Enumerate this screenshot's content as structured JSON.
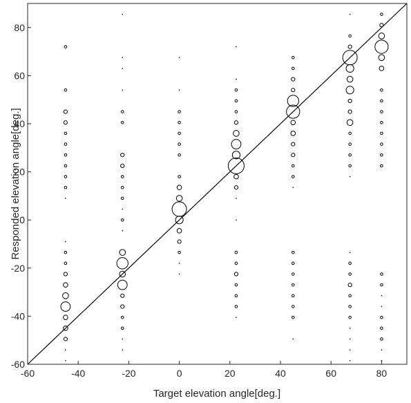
{
  "chart_data": {
    "type": "scatter",
    "subtype": "bubble",
    "xlabel": "Target elevation angle[deg.]",
    "ylabel": "Responded elevation angle[deg.]",
    "xlim": [
      -60,
      90
    ],
    "ylim": [
      -60,
      90
    ],
    "xticks": [
      -60,
      -40,
      -20,
      0,
      20,
      40,
      60,
      80
    ],
    "yticks": [
      -60,
      -40,
      -20,
      0,
      20,
      40,
      60,
      80
    ],
    "grid": false,
    "marker": "open-circle",
    "marker_color": "#000000",
    "reference_line": {
      "from": [
        -60,
        -60
      ],
      "to": [
        90,
        90
      ],
      "color": "#000000"
    },
    "size_unit": "relative frequency of responses (1-10)",
    "series": [
      {
        "x": -45,
        "points": [
          [
            72,
            1
          ],
          [
            54,
            1
          ],
          [
            45,
            2
          ],
          [
            40.5,
            2
          ],
          [
            36,
            1
          ],
          [
            31.5,
            1
          ],
          [
            27,
            1
          ],
          [
            22.5,
            1
          ],
          [
            18,
            1
          ],
          [
            13.5,
            1
          ],
          [
            9,
            0
          ],
          [
            -9,
            0
          ],
          [
            -13.5,
            1
          ],
          [
            -18,
            1
          ],
          [
            -22.5,
            2
          ],
          [
            -27,
            3
          ],
          [
            -31.5,
            4
          ],
          [
            -36,
            6
          ],
          [
            -40.5,
            3
          ],
          [
            -45,
            3
          ],
          [
            -49.5,
            2
          ],
          [
            -54,
            0
          ],
          [
            -58.5,
            0
          ]
        ]
      },
      {
        "x": -22.5,
        "points": [
          [
            85.5,
            0
          ],
          [
            67.5,
            0
          ],
          [
            63,
            0
          ],
          [
            54,
            0
          ],
          [
            45,
            1
          ],
          [
            40.5,
            1
          ],
          [
            27,
            2
          ],
          [
            22.5,
            2
          ],
          [
            18,
            1
          ],
          [
            13.5,
            1
          ],
          [
            9,
            1
          ],
          [
            4.5,
            0
          ],
          [
            0,
            1
          ],
          [
            -4.5,
            0
          ],
          [
            -13.5,
            4
          ],
          [
            -18,
            7
          ],
          [
            -22.5,
            4
          ],
          [
            -27,
            6
          ],
          [
            -31.5,
            2
          ],
          [
            -36,
            2
          ],
          [
            -40.5,
            1
          ],
          [
            -45,
            1
          ],
          [
            -49.5,
            0
          ],
          [
            -54,
            0
          ]
        ]
      },
      {
        "x": 0,
        "points": [
          [
            67.5,
            0
          ],
          [
            54,
            0
          ],
          [
            45,
            1
          ],
          [
            40.5,
            1
          ],
          [
            36,
            1
          ],
          [
            31.5,
            1
          ],
          [
            27,
            1
          ],
          [
            18,
            1
          ],
          [
            13.5,
            3
          ],
          [
            9,
            4
          ],
          [
            4.5,
            9
          ],
          [
            0,
            5
          ],
          [
            -4.5,
            3
          ],
          [
            -9,
            2
          ],
          [
            -13.5,
            1
          ],
          [
            -18,
            0
          ],
          [
            -22.5,
            0
          ]
        ]
      },
      {
        "x": 22.5,
        "points": [
          [
            72,
            0
          ],
          [
            58.5,
            0
          ],
          [
            54,
            1
          ],
          [
            49.5,
            1
          ],
          [
            45,
            1
          ],
          [
            40.5,
            2
          ],
          [
            36,
            4
          ],
          [
            31.5,
            6
          ],
          [
            27,
            5
          ],
          [
            22.5,
            10
          ],
          [
            18,
            3
          ],
          [
            13.5,
            2
          ],
          [
            9,
            0
          ],
          [
            0,
            0
          ],
          [
            -13.5,
            1
          ],
          [
            -18,
            1
          ],
          [
            -22.5,
            2
          ],
          [
            -27,
            1
          ],
          [
            -31.5,
            1
          ],
          [
            -36,
            1
          ],
          [
            -40.5,
            0
          ]
        ]
      },
      {
        "x": 45,
        "points": [
          [
            67.5,
            1
          ],
          [
            63,
            1
          ],
          [
            58.5,
            2
          ],
          [
            54,
            2
          ],
          [
            49.5,
            7
          ],
          [
            45,
            8
          ],
          [
            40.5,
            3
          ],
          [
            36,
            3
          ],
          [
            31.5,
            2
          ],
          [
            27,
            2
          ],
          [
            22.5,
            1
          ],
          [
            18,
            1
          ],
          [
            13.5,
            0
          ],
          [
            -13.5,
            1
          ],
          [
            -18,
            1
          ],
          [
            -22.5,
            1
          ],
          [
            -27,
            1
          ],
          [
            -31.5,
            1
          ],
          [
            -36,
            1
          ],
          [
            -40.5,
            1
          ],
          [
            -49.5,
            0
          ]
        ]
      },
      {
        "x": 67.5,
        "points": [
          [
            85.5,
            0
          ],
          [
            76.5,
            1
          ],
          [
            72,
            2
          ],
          [
            67.5,
            9
          ],
          [
            63,
            5
          ],
          [
            58.5,
            4
          ],
          [
            54,
            5
          ],
          [
            49.5,
            2
          ],
          [
            45,
            2
          ],
          [
            40.5,
            4
          ],
          [
            36,
            1
          ],
          [
            31.5,
            1
          ],
          [
            27,
            1
          ],
          [
            22.5,
            1
          ],
          [
            18,
            0
          ],
          [
            -13.5,
            0
          ],
          [
            -18,
            1
          ],
          [
            -22.5,
            1
          ],
          [
            -27,
            2
          ],
          [
            -31.5,
            1
          ],
          [
            -36,
            1
          ],
          [
            -40.5,
            1
          ],
          [
            -45,
            0
          ],
          [
            -49.5,
            0
          ],
          [
            -54,
            0
          ],
          [
            -58.5,
            0
          ]
        ]
      },
      {
        "x": 80,
        "points": [
          [
            85.5,
            1
          ],
          [
            81,
            2
          ],
          [
            76.5,
            4
          ],
          [
            72,
            8
          ],
          [
            67.5,
            4
          ],
          [
            63,
            3
          ],
          [
            54,
            1
          ],
          [
            49.5,
            1
          ],
          [
            45,
            1
          ],
          [
            40.5,
            1
          ],
          [
            36,
            1
          ],
          [
            31.5,
            1
          ],
          [
            27,
            1
          ],
          [
            22.5,
            1
          ],
          [
            -22.5,
            1
          ],
          [
            -27,
            1
          ],
          [
            -31.5,
            0
          ],
          [
            -36,
            0
          ],
          [
            -40.5,
            1
          ],
          [
            -45,
            1
          ],
          [
            -49.5,
            1
          ],
          [
            -54,
            0
          ],
          [
            -58.5,
            0
          ]
        ]
      }
    ]
  }
}
